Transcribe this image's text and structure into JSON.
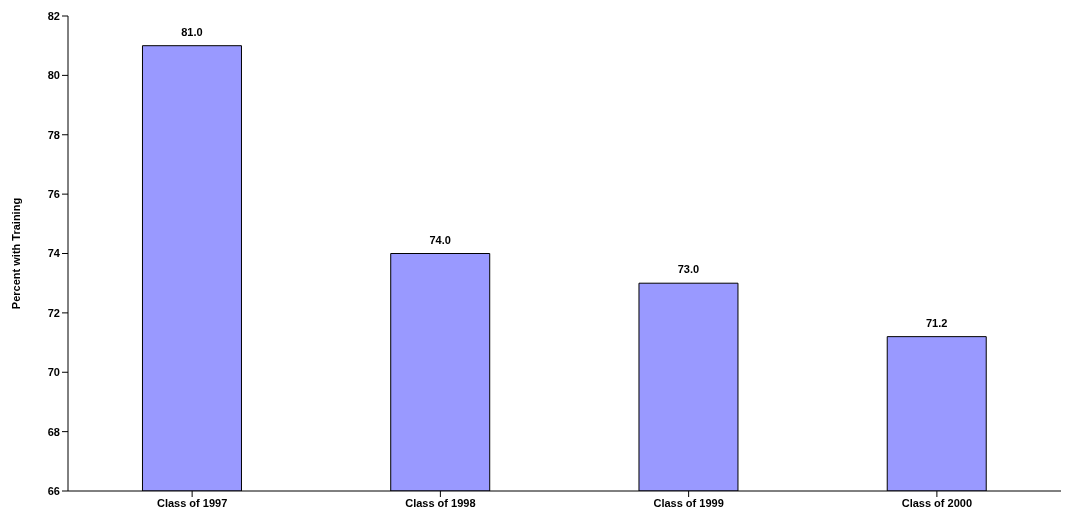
{
  "chart_data": {
    "type": "bar",
    "ylabel": "Percent with Training",
    "categories": [
      "Class of 1997",
      "Class of 1998",
      "Class of 1999",
      "Class of 2000"
    ],
    "values": [
      81.0,
      74.0,
      73.0,
      71.2
    ],
    "color": "#9999ff",
    "ylim": [
      66,
      82
    ],
    "yticks": [
      66,
      68,
      70,
      72,
      74,
      76,
      78,
      80,
      82
    ],
    "value_labels": [
      "81.0",
      "74.0",
      "73.0",
      "71.2"
    ]
  }
}
